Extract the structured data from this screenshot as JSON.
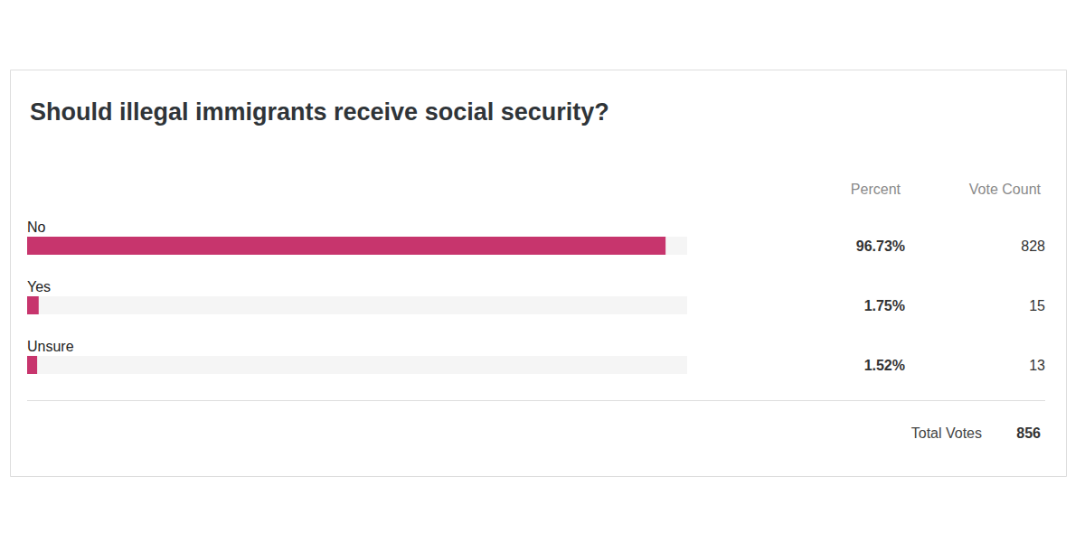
{
  "chart_data": {
    "type": "bar",
    "orientation": "horizontal",
    "title": "Should illegal immigrants receive social security?",
    "categories": [
      "No",
      "Yes",
      "Unsure"
    ],
    "values": [
      96.73,
      1.75,
      1.52
    ],
    "value_labels": [
      "96.73%",
      "1.75%",
      "1.52%"
    ],
    "vote_counts": [
      828,
      15,
      13
    ],
    "column_headers": [
      "Percent",
      "Vote Count"
    ],
    "total_label": "Total Votes",
    "total": 856,
    "color": "#c7356d",
    "xlim": [
      0,
      100
    ],
    "data_labels": true,
    "tick_labels": "y",
    "grid": false
  }
}
